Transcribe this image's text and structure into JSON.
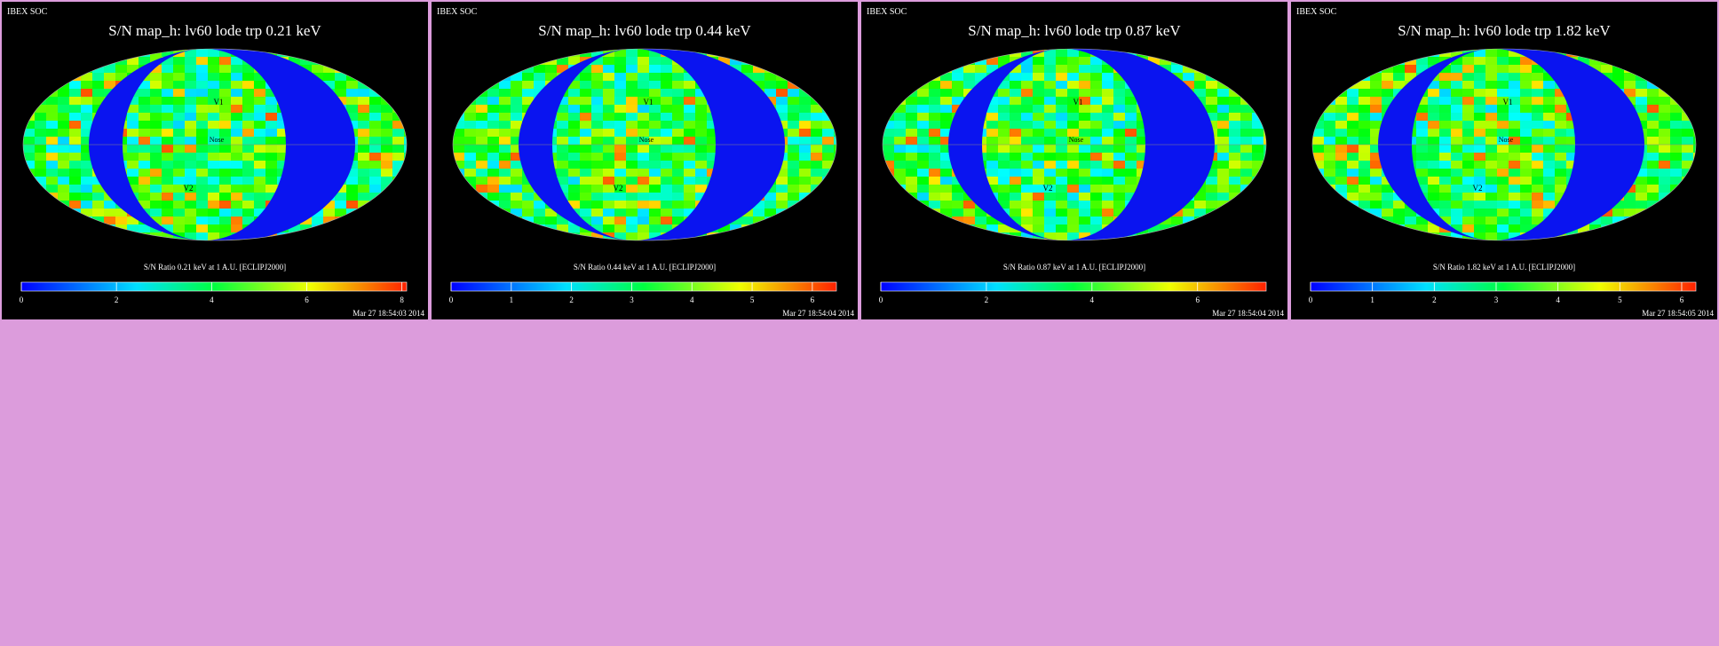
{
  "panels": [
    {
      "header": "IBEX SOC",
      "title": "S/N  map_h: lv60 lode trp 0.21 keV",
      "map_labels": {
        "v1": "V1",
        "v2": "V2",
        "nose": "Nose"
      },
      "colorbar": {
        "label": "S/N Ratio 0.21 keV at 1 A.U. [ECLIPJ2000]",
        "range": [
          0,
          8.1
        ],
        "ticks": [
          0,
          2,
          4,
          6,
          8
        ]
      },
      "timestamp": "Mar 27 18:54:03 2014"
    },
    {
      "header": "IBEX SOC",
      "title": "S/N  map_h: lv60 lode trp 0.44 keV",
      "map_labels": {
        "v1": "V1",
        "v2": "V2",
        "nose": "Nose"
      },
      "colorbar": {
        "label": "S/N Ratio 0.44 keV at 1 A.U. [ECLIPJ2000]",
        "range": [
          0,
          6.4
        ],
        "ticks": [
          0,
          1,
          2,
          3,
          4,
          5,
          6
        ]
      },
      "timestamp": "Mar 27 18:54:04 2014"
    },
    {
      "header": "IBEX SOC",
      "title": "S/N  map_h: lv60 lode trp 0.87 keV",
      "map_labels": {
        "v1": "V1",
        "v2": "V2",
        "nose": "Nose"
      },
      "colorbar": {
        "label": "S/N Ratio 0.87 keV at 1 A.U. [ECLIPJ2000]",
        "range": [
          0,
          7.3
        ],
        "ticks": [
          0,
          2,
          4,
          6
        ]
      },
      "timestamp": "Mar 27 18:54:04 2014"
    },
    {
      "header": "IBEX SOC",
      "title": "S/N  map_h: lv60 lode trp 1.82 keV",
      "map_labels": {
        "v1": "V1",
        "v2": "V2",
        "nose": "Nose"
      },
      "colorbar": {
        "label": "S/N Ratio 1.82 keV at 1 A.U. [ECLIPJ2000]",
        "range": [
          0,
          6.23
        ],
        "ticks": [
          0,
          1,
          2,
          3,
          4,
          5,
          6
        ]
      },
      "timestamp": "Mar 27 18:54:05 2014"
    }
  ]
}
